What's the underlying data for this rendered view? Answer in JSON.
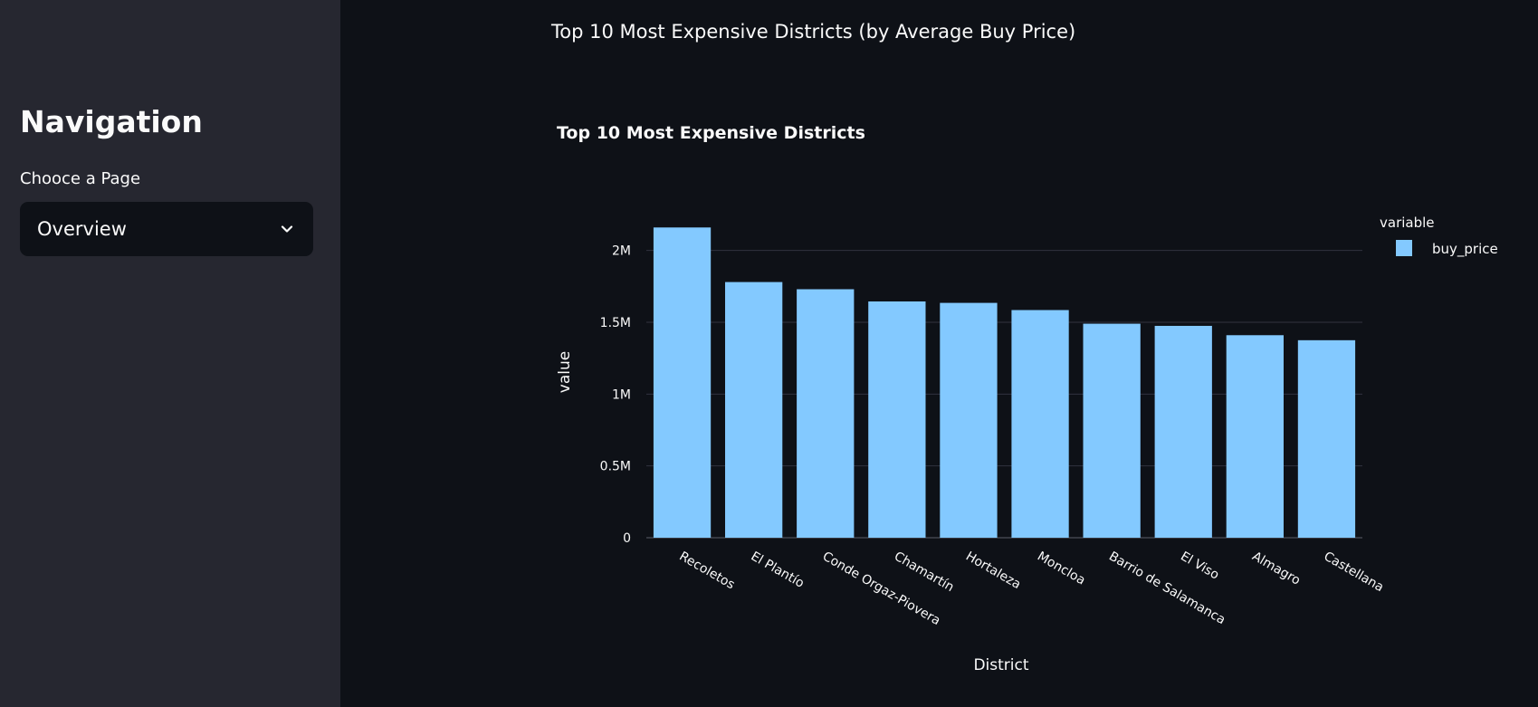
{
  "sidebar": {
    "title": "Navigation",
    "select_label": "Chooce a Page",
    "select_value": "Overview",
    "select_icon": "chevron-down-icon"
  },
  "main": {
    "heading": "Top 10 Most Expensive Districts (by Average Buy Price)"
  },
  "colors": {
    "page_bg": "#0e1117",
    "sidebar_bg": "#262730",
    "bar": "#83c9ff",
    "grid": "#31333f",
    "text": "#fafafa"
  },
  "chart_data": {
    "type": "bar",
    "title": "Top 10 Most Expensive Districts",
    "xlabel": "District",
    "ylabel": "value",
    "categories": [
      "Recoletos",
      "El Plantío",
      "Conde Orgaz-Piovera",
      "Chamartín",
      "Hortaleza",
      "Moncloa",
      "Barrio de Salamanca",
      "El Viso",
      "Almagro",
      "Castellana"
    ],
    "series": [
      {
        "name": "buy_price",
        "values": [
          2160000,
          1780000,
          1730000,
          1645000,
          1635000,
          1585000,
          1490000,
          1475000,
          1410000,
          1375000
        ]
      }
    ],
    "legend": {
      "title": "variable",
      "position": "top-right"
    },
    "ylim": [
      0,
      2250000
    ],
    "yticks": [
      0,
      500000,
      1000000,
      1500000,
      2000000
    ],
    "ytick_labels": [
      "0",
      "0.5M",
      "1M",
      "1.5M",
      "2M"
    ],
    "grid": true
  }
}
